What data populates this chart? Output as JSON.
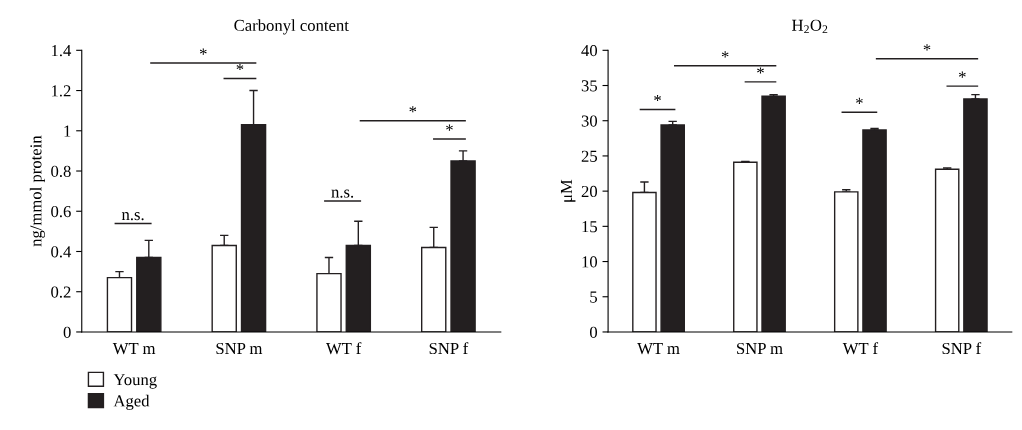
{
  "chart_data": [
    {
      "type": "bar",
      "title": "Carbonyl content",
      "ylabel": "ng/mmol protein",
      "categories": [
        "WT m",
        "SNP m",
        "WT f",
        "SNP f"
      ],
      "series": [
        {
          "name": "Young",
          "color": "#ffffff",
          "values": [
            0.27,
            0.43,
            0.29,
            0.42
          ],
          "errors": [
            [
              0.27,
              0.3
            ],
            [
              0.43,
              0.48
            ],
            [
              0.29,
              0.37
            ],
            [
              0.42,
              0.52
            ]
          ]
        },
        {
          "name": "Aged",
          "color": "#231f20",
          "values": [
            0.37,
            1.03,
            0.43,
            0.85
          ],
          "errors": [
            [
              0.37,
              0.455
            ],
            [
              1.03,
              1.2
            ],
            [
              0.43,
              0.55
            ],
            [
              0.85,
              0.9
            ]
          ]
        }
      ],
      "ylim": [
        0,
        1.4
      ],
      "yticks": [
        0,
        0.2,
        0.4,
        0.6,
        0.8,
        1,
        1.2,
        1.4
      ],
      "legend": "bottom left",
      "annotations": [
        "*",
        "*",
        "n.s.",
        "*",
        "*",
        "n.s."
      ]
    },
    {
      "type": "bar",
      "title": "H$_{2}$O$_{2}$",
      "ylabel": "μM",
      "categories": [
        "WT m",
        "SNP m",
        "WT f",
        "SNP f"
      ],
      "series": [
        {
          "color": "#ffffff",
          "values": [
            19.8,
            24.1,
            19.9,
            23.1
          ],
          "errors": [
            [
              19.8,
              21.3
            ],
            [
              24.1,
              24.2
            ],
            [
              19.9,
              20.2
            ],
            [
              23.1,
              23.3
            ]
          ]
        },
        {
          "color": "#231f20",
          "values": [
            29.4,
            33.5,
            28.7,
            33.1
          ],
          "errors": [
            [
              29.4,
              29.9
            ],
            [
              33.5,
              33.7
            ],
            [
              28.7,
              28.9
            ],
            [
              33.1,
              33.7
            ]
          ]
        }
      ],
      "ylim": [
        0,
        40
      ],
      "yticks": [
        0,
        5,
        10,
        15,
        20,
        25,
        30,
        35,
        40
      ],
      "annotations": [
        "*",
        "*",
        "*",
        "*",
        "*",
        "*"
      ]
    }
  ]
}
